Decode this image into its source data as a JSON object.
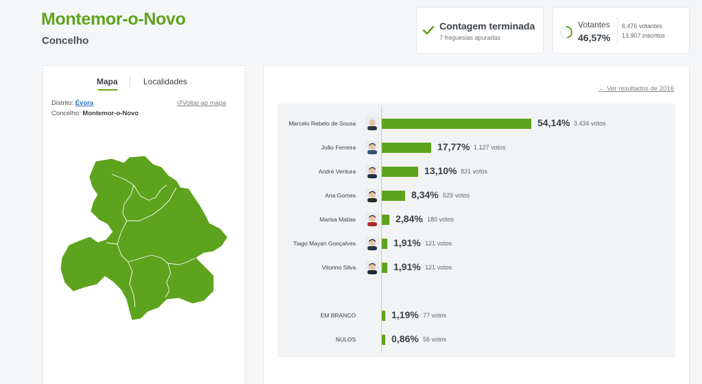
{
  "header": {
    "title": "Montemor-o-Novo",
    "subtitle": "Concelho"
  },
  "status_card": {
    "title": "Contagem terminada",
    "subtitle": "7 freguesias apuradas",
    "icon": "check-icon",
    "color": "#5ea31e"
  },
  "voters_card": {
    "label": "Votantes",
    "percent": "46,57%",
    "voters": "6.476 votantes",
    "registered": "13.907 inscritos",
    "progress": 0.4657
  },
  "tabs": {
    "map": "Mapa",
    "localities": "Localidades"
  },
  "meta": {
    "district_label": "Distrito:",
    "district_value": "Évora",
    "county_label": "Concelho:",
    "county_value": "Montemor-o-Novo",
    "back_link": "Voltar ao mapa"
  },
  "results_link": "Ver resultados de 2016",
  "colors": {
    "accent": "#5ea31e",
    "map_fill": "#5ea31e"
  },
  "chart_data": {
    "type": "bar",
    "orientation": "horizontal",
    "categories": [
      "Marcelo Rebelo de Sousa",
      "João Ferreira",
      "André Ventura",
      "Ana Gomes",
      "Marisa Matias",
      "Tiago Mayan Gonçalves",
      "Vitorino Silva",
      "EM BRANCO",
      "NULOS"
    ],
    "values": [
      54.14,
      17.77,
      13.1,
      8.34,
      2.84,
      1.91,
      1.91,
      1.19,
      0.86
    ],
    "labels": [
      "54,14%",
      "17,77%",
      "13,10%",
      "8,34%",
      "2,84%",
      "1,91%",
      "1,91%",
      "1,19%",
      "0,86%"
    ],
    "votes": [
      "3.434 votos",
      "1.127 votos",
      "831 votos",
      "529 votos",
      "180 votos",
      "121 votos",
      "121 votos",
      "77 votos",
      "56 votos"
    ],
    "has_avatar": [
      true,
      true,
      true,
      true,
      true,
      true,
      true,
      false,
      false
    ],
    "color": "#5ea31e"
  }
}
